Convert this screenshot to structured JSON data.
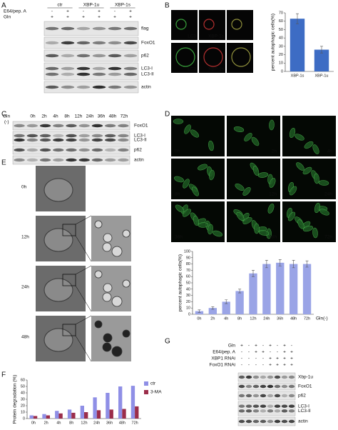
{
  "figure": {
    "panel_labels": [
      "A",
      "B",
      "C",
      "D",
      "E",
      "F",
      "G"
    ],
    "blot_a": {
      "groups": [
        "ctr",
        "XBP-1u",
        "XBP-1s"
      ],
      "header_rows": [
        {
          "label": "E64/pep. A",
          "signs": [
            "-",
            "+",
            "-",
            "+",
            "-",
            "+"
          ]
        },
        {
          "label": "Gln",
          "signs": [
            "+",
            "+",
            "+",
            "+",
            "+",
            "+"
          ]
        }
      ],
      "bands": [
        [
          "flag"
        ],
        [
          "FoxO1"
        ],
        [
          "p62"
        ],
        [
          "LC3-I",
          "LC3-II"
        ],
        [
          "actin"
        ]
      ]
    },
    "b_image_labels": [
      "LC3",
      "XBP-1s",
      "LC3",
      "XBP-1s"
    ],
    "blot_c": {
      "treatment": [
        "Gln",
        "(-)"
      ],
      "lanes": [
        "0h",
        "2h",
        "4h",
        "8h",
        "12h",
        "24h",
        "36h",
        "48h",
        "72h"
      ],
      "bands": [
        [
          "FoxO1"
        ],
        [
          "LC3-I",
          "LC3-II"
        ],
        [
          "p62"
        ],
        [
          "actin"
        ]
      ]
    },
    "d_image_labels": [
      "0h",
      "2h",
      "4h",
      "8h",
      "12h",
      "24h",
      "36h",
      "48h",
      "72h"
    ],
    "e_time_labels": [
      "0h",
      "12h",
      "24h",
      "48h"
    ],
    "blot_g": {
      "header_rows": [
        {
          "label": "Gln",
          "signs": [
            "+",
            "-",
            "+",
            "-",
            "+",
            "-",
            "+",
            "-"
          ]
        },
        {
          "label": "E64/pep. A",
          "signs": [
            "-",
            "-",
            "+",
            "+",
            "-",
            "-",
            "+",
            "+"
          ]
        },
        {
          "label": "XBP1 RNAi",
          "signs": [
            "-",
            "-",
            "-",
            "-",
            "+",
            "+",
            "+",
            "+"
          ]
        },
        {
          "label": "FoxO1 RNAi",
          "signs": [
            "-",
            "-",
            "-",
            "-",
            "+",
            "+",
            "+",
            "+"
          ]
        }
      ],
      "bands": [
        [
          "Xbp-1u"
        ],
        [
          "FoxO1"
        ],
        [
          "p62"
        ],
        [
          "LC3-I",
          "LC3-II"
        ],
        [
          "actin"
        ]
      ]
    }
  },
  "chart_data": [
    {
      "type": "bar",
      "ylabel": "percent autophagic cells(%)",
      "categories": [
        "XBP-1s",
        "XBP-1u"
      ],
      "values": [
        63,
        26
      ],
      "errors": [
        6,
        4
      ],
      "color": "#3d6cc4",
      "ylim": [
        0,
        70
      ],
      "yticks": [
        0,
        10,
        20,
        30,
        40,
        50,
        60,
        70
      ]
    },
    {
      "type": "bar",
      "ylabel": "percent autophagic cells(%)",
      "xlabel": "Gln(-)",
      "categories": [
        "0h",
        "2h",
        "4h",
        "8h",
        "12h",
        "24h",
        "36h",
        "48h",
        "72h"
      ],
      "values": [
        5,
        10,
        20,
        37,
        65,
        80,
        82,
        80,
        80
      ],
      "errors": [
        2,
        2,
        3,
        3,
        5,
        6,
        5,
        6,
        5
      ],
      "color": "#9aa4e6",
      "ylim": [
        0,
        100
      ],
      "yticks": [
        0,
        10,
        20,
        30,
        40,
        50,
        60,
        70,
        80,
        90,
        100
      ]
    },
    {
      "type": "bar",
      "ylabel": "Protein degradation (%)",
      "categories": [
        "0h",
        "2h",
        "4h",
        "8h",
        "12h",
        "24h",
        "36h",
        "48h",
        "72h"
      ],
      "series": [
        {
          "name": "ctr",
          "color": "#8f8fe6",
          "values": [
            5,
            7,
            12,
            14,
            20,
            33,
            40,
            50,
            51
          ]
        },
        {
          "name": "3-MA",
          "color": "#9b2d4a",
          "values": [
            4,
            5,
            8,
            9,
            10,
            13,
            14,
            15,
            19
          ]
        }
      ],
      "ylim": [
        0,
        60
      ],
      "yticks": [
        0,
        10,
        20,
        30,
        40,
        50,
        60
      ],
      "legend": "top-right"
    }
  ]
}
